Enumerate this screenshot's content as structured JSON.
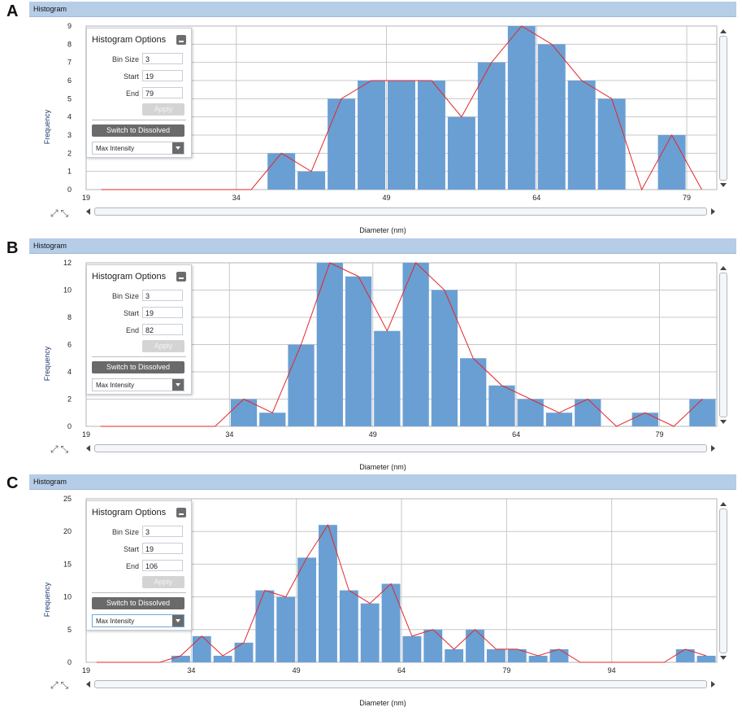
{
  "colors": {
    "bar": "#6a9fd3",
    "curve": "#e4262a",
    "header": "#b6cde8",
    "grid": "#c8c8c8"
  },
  "chart_data": [
    {
      "type": "bar",
      "panel_label": "A",
      "title": "Histogram",
      "xlabel": "Diameter (nm)",
      "ylabel": "Frequency",
      "xlim": [
        19,
        82
      ],
      "ylim": [
        0,
        9
      ],
      "xticks": [
        19,
        34,
        49,
        64,
        79
      ],
      "yticks": [
        0,
        1,
        2,
        3,
        4,
        5,
        6,
        7,
        8,
        9
      ],
      "bin_size": 3,
      "bin_starts": [
        19,
        22,
        25,
        28,
        31,
        34,
        37,
        40,
        43,
        46,
        49,
        52,
        55,
        58,
        61,
        64,
        67,
        70,
        73,
        76,
        79
      ],
      "values": [
        0,
        0,
        0,
        0,
        0,
        0,
        2,
        1,
        5,
        6,
        6,
        6,
        4,
        7,
        9,
        8,
        6,
        5,
        0,
        3,
        0
      ],
      "curve": true,
      "options": {
        "heading": "Histogram Options",
        "bin_size_label": "Bin Size",
        "bin_size": "3",
        "start_label": "Start",
        "start": "19",
        "end_label": "End",
        "end": "79",
        "apply_label": "Apply",
        "switch_label": "Switch to Dissolved",
        "mode": "Max Intensity"
      }
    },
    {
      "type": "bar",
      "panel_label": "B",
      "title": "Histogram",
      "xlabel": "Diameter (nm)",
      "ylabel": "Frequency",
      "xlim": [
        19,
        85
      ],
      "ylim": [
        0,
        12
      ],
      "xticks": [
        19,
        34,
        49,
        64,
        79
      ],
      "yticks": [
        0,
        2,
        4,
        6,
        8,
        10,
        12
      ],
      "bin_size": 3,
      "bin_starts": [
        19,
        22,
        25,
        28,
        31,
        34,
        37,
        40,
        43,
        46,
        49,
        52,
        55,
        58,
        61,
        64,
        67,
        70,
        73,
        76,
        79,
        82
      ],
      "values": [
        0,
        0,
        0,
        0,
        0,
        2,
        1,
        6,
        12,
        11,
        7,
        12,
        10,
        5,
        3,
        2,
        1,
        2,
        0,
        1,
        0,
        2
      ],
      "curve": true,
      "options": {
        "heading": "Histogram Options",
        "bin_size_label": "Bin Size",
        "bin_size": "3",
        "start_label": "Start",
        "start": "19",
        "end_label": "End",
        "end": "82",
        "apply_label": "Apply",
        "switch_label": "Switch to Dissolved",
        "mode": "Max Intensity"
      }
    },
    {
      "type": "bar",
      "panel_label": "C",
      "title": "Histogram",
      "xlabel": "Diameter (nm)",
      "ylabel": "Frequency",
      "xlim": [
        19,
        109
      ],
      "ylim": [
        0,
        25
      ],
      "xticks": [
        19,
        34,
        49,
        64,
        79,
        94
      ],
      "yticks": [
        0,
        5,
        10,
        15,
        20,
        25
      ],
      "bin_size": 3,
      "bin_starts": [
        19,
        22,
        25,
        28,
        31,
        34,
        37,
        40,
        43,
        46,
        49,
        52,
        55,
        58,
        61,
        64,
        67,
        70,
        73,
        76,
        79,
        82,
        85,
        88,
        91,
        94,
        97,
        100,
        103,
        106
      ],
      "values": [
        0,
        0,
        0,
        0,
        1,
        4,
        1,
        3,
        11,
        10,
        16,
        21,
        11,
        9,
        12,
        4,
        5,
        2,
        5,
        2,
        2,
        1,
        2,
        0,
        0,
        0,
        0,
        0,
        2,
        1
      ],
      "curve": true,
      "options": {
        "heading": "Histogram Options",
        "bin_size_label": "Bin Size",
        "bin_size": "3",
        "start_label": "Start",
        "start": "19",
        "end_label": "End",
        "end": "106",
        "apply_label": "Apply",
        "switch_label": "Switch to Dissolved",
        "mode": "Max Intensity"
      }
    }
  ]
}
